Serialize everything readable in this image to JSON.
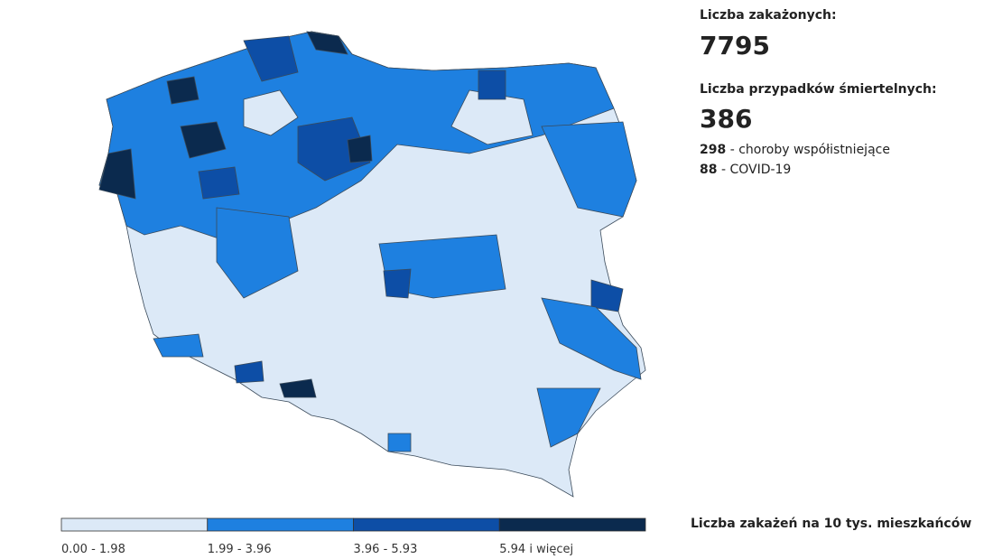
{
  "stats": {
    "infected_label": "Liczba zakażonych:",
    "infected": 7795,
    "deaths_label": "Liczba przypadków śmiertelnych:",
    "deaths": 386,
    "breakdown": [
      {
        "value": 298,
        "label": "- choroby współistniejące"
      },
      {
        "value": 88,
        "label": "- COVID-19"
      }
    ]
  },
  "legend": {
    "title": "Liczba zakażeń na 10 tys. mieszkańców",
    "classes": [
      {
        "label": "0.00 - 1.98",
        "color": "#dce9f7"
      },
      {
        "label": "1.99 - 3.96",
        "color": "#1e80e0"
      },
      {
        "label": "3.96 - 5.93",
        "color": "#0d4ea6"
      },
      {
        "label": "5.94 i więcej",
        "color": "#0b2a4e"
      }
    ]
  }
}
